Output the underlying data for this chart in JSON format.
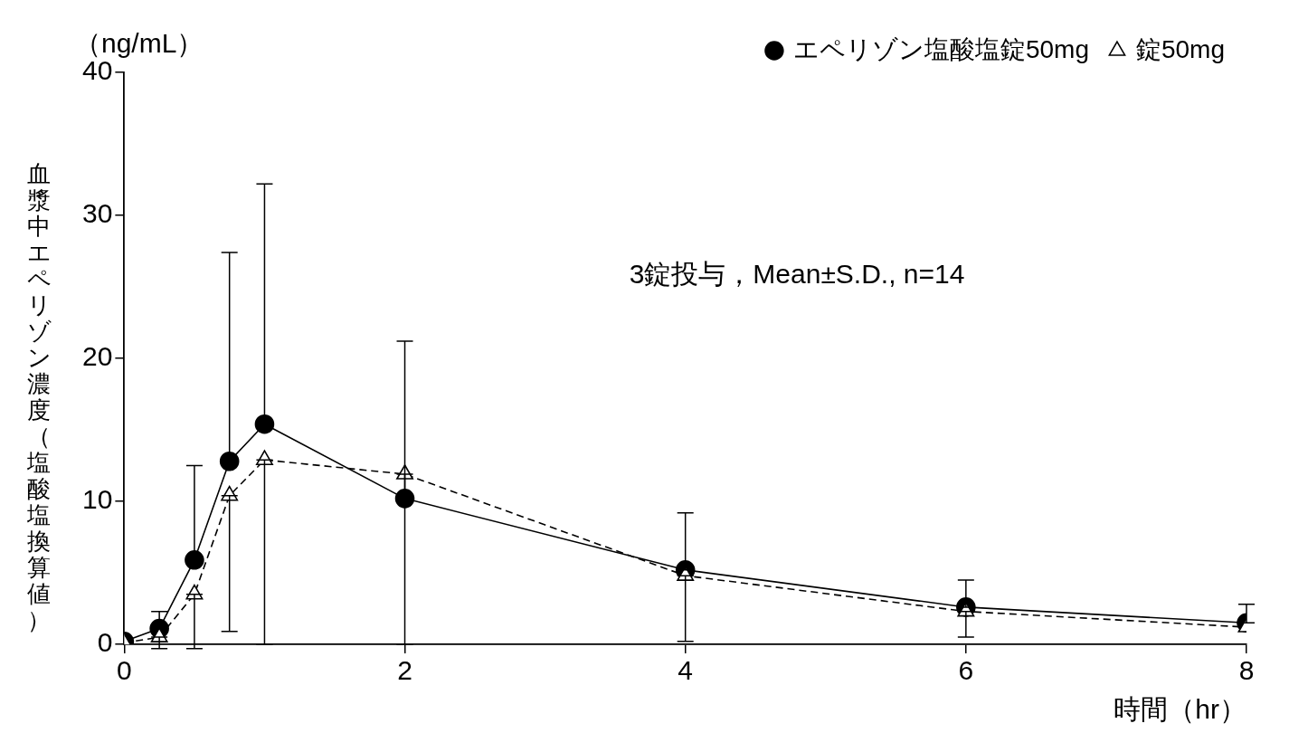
{
  "chart_data": {
    "type": "line",
    "ylabel": "血漿中エペリゾン濃度（塩酸塩換算値）",
    "xlabel": "時間（hr）",
    "annotations": [
      "（ng/mL）",
      "3錠投与，Mean±S.D., n=14"
    ],
    "x": [
      0,
      0.25,
      0.5,
      0.75,
      1,
      2,
      4,
      6,
      8
    ],
    "xlim": [
      0,
      8
    ],
    "xticks": [
      0,
      2,
      4,
      6,
      8
    ],
    "ylim": [
      0,
      40
    ],
    "yticks": [
      0,
      10,
      20,
      30,
      40
    ],
    "grid": false,
    "legend": "top right",
    "series": [
      {
        "name": "エペリゾン塩酸塩錠50mg",
        "color": "#000000",
        "marker": "circle",
        "line_style": "solid",
        "values": [
          0.2,
          1.1,
          5.9,
          12.8,
          15.4,
          10.2,
          5.2,
          2.6,
          1.5
        ],
        "errors": [
          null,
          [
            1.1,
            2.3
          ],
          [
            5.9,
            12.5
          ],
          [
            12.8,
            27.4
          ],
          [
            15.4,
            32.2
          ],
          [
            10.2,
            21.2
          ],
          [
            5.2,
            9.2
          ],
          [
            2.6,
            4.5
          ],
          [
            1.5,
            2.8
          ]
        ]
      },
      {
        "name": "錠50mg",
        "color": "#000000",
        "marker": "triangle",
        "line_style": "dashed",
        "values": [
          0.1,
          0.5,
          3.5,
          10.4,
          12.9,
          11.9,
          4.8,
          2.3,
          1.2
        ],
        "errors": [
          null,
          [
            -0.3,
            0.5
          ],
          [
            -0.3,
            3.5
          ],
          [
            0.9,
            10.4
          ],
          [
            0,
            12.9
          ],
          [
            0,
            11.9
          ],
          [
            0.2,
            4.8
          ],
          [
            0.5,
            2.3
          ],
          null
        ]
      }
    ]
  }
}
